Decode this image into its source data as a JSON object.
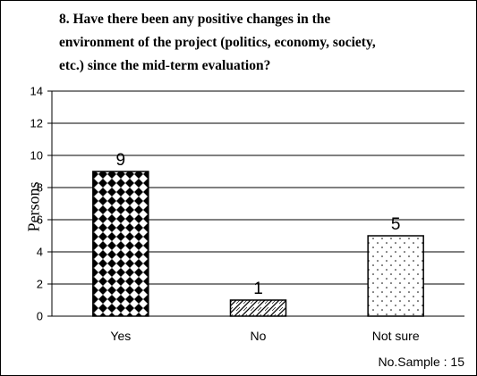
{
  "chart_data": {
    "type": "bar",
    "title_lines": [
      "8.  Have there been any positive changes in the",
      "environment of the project (politics, economy, society,",
      "etc.) since the mid-term evaluation?"
    ],
    "ylabel": "Persons",
    "xlabel": "",
    "ylim": [
      0,
      14
    ],
    "yticks": [
      0,
      2,
      4,
      6,
      8,
      10,
      12,
      14
    ],
    "grid": true,
    "categories": [
      "Yes",
      "No",
      "Not sure"
    ],
    "values": [
      9,
      1,
      5
    ],
    "data_labels": [
      "9",
      "1",
      "5"
    ],
    "patterns": [
      "diamond-checker",
      "diagonal-wave",
      "sparse-dots"
    ],
    "note": "No.Sample : 15"
  }
}
